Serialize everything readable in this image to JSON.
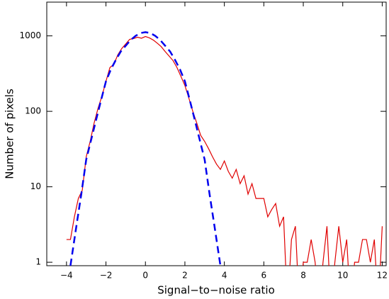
{
  "chart_data": {
    "type": "line",
    "xlabel": "Signal−to−noise ratio",
    "ylabel": "Number of pixels",
    "xlim": [
      -5.0,
      12.2
    ],
    "ylim": [
      0.9,
      2800
    ],
    "ylog": true,
    "xticks": [
      {
        "value": -4,
        "label": "−4"
      },
      {
        "value": -2,
        "label": "−2"
      },
      0,
      2,
      4,
      6,
      8,
      10,
      12
    ],
    "yticks": [
      1,
      10,
      100,
      1000
    ],
    "series": [
      {
        "style": "solid",
        "color": "#e00000",
        "x": [
          -4.0,
          -3.8,
          -3.6,
          -3.4,
          -3.2,
          -3.0,
          -2.8,
          -2.6,
          -2.4,
          -2.2,
          -2.0,
          -1.8,
          -1.6,
          -1.4,
          -1.2,
          -1.0,
          -0.8,
          -0.6,
          -0.4,
          -0.2,
          0.0,
          0.2,
          0.4,
          0.6,
          0.8,
          1.0,
          1.2,
          1.4,
          1.6,
          1.8,
          2.0,
          2.2,
          2.4,
          2.6,
          2.8,
          3.0,
          3.2,
          3.4,
          3.6,
          3.8,
          4.0,
          4.2,
          4.4,
          4.6,
          4.8,
          5.0,
          5.2,
          5.4,
          5.6,
          5.8,
          6.0,
          6.2,
          6.4,
          6.6,
          6.8,
          7.0,
          7.2,
          7.4,
          7.6,
          7.8,
          8.0,
          8.2,
          8.4,
          8.6,
          8.8,
          9.0,
          9.2,
          9.4,
          9.6,
          9.8,
          10.0,
          10.2,
          10.4,
          10.6,
          10.8,
          11.0,
          11.2,
          11.4,
          11.6,
          11.8,
          12.0
        ],
        "values": [
          2,
          2,
          4,
          7,
          9,
          25,
          40,
          70,
          110,
          160,
          250,
          380,
          420,
          560,
          680,
          780,
          900,
          920,
          960,
          930,
          980,
          940,
          880,
          800,
          720,
          620,
          540,
          470,
          380,
          290,
          220,
          150,
          100,
          70,
          48,
          40,
          32,
          25,
          20,
          17,
          22,
          16,
          13,
          17,
          11,
          14,
          8,
          11,
          7,
          7,
          7,
          4,
          5,
          6,
          3,
          4,
          0,
          2,
          3,
          0,
          1,
          1,
          2,
          1,
          0,
          1,
          3,
          0,
          1,
          3,
          1,
          2,
          0,
          1,
          1,
          2,
          2,
          1,
          2,
          0,
          3
        ]
      },
      {
        "style": "dashed",
        "color": "#0000ee",
        "x": [
          -3.8,
          -3.5,
          -3.25,
          -3.0,
          -2.75,
          -2.5,
          -2.25,
          -2.0,
          -1.75,
          -1.5,
          -1.25,
          -1.0,
          -0.75,
          -0.5,
          -0.25,
          0.0,
          0.25,
          0.5,
          0.75,
          1.0,
          1.25,
          1.5,
          1.75,
          2.0,
          2.25,
          2.5,
          2.75,
          3.0,
          3.25,
          3.5,
          3.8
        ],
        "values": [
          0.9,
          3,
          8,
          23,
          42,
          77,
          140,
          250,
          360,
          480,
          620,
          740,
          880,
          1000,
          1090,
          1120,
          1090,
          1000,
          880,
          740,
          620,
          480,
          360,
          250,
          140,
          77,
          42,
          23,
          8,
          3,
          0.9
        ]
      }
    ]
  }
}
